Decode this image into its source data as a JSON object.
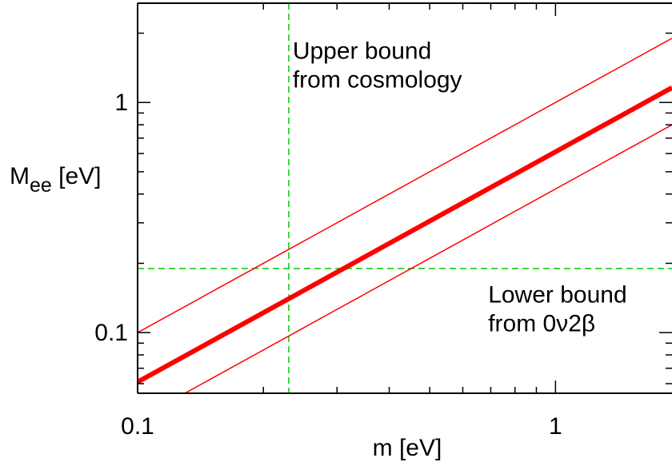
{
  "chart_data": {
    "type": "line",
    "title": "",
    "xlabel": "m [eV]",
    "ylabel_main": "M",
    "ylabel_sub": "ee",
    "ylabel_unit": " [eV]",
    "x_scale": "log",
    "y_scale": "log",
    "xlim": [
      0.1,
      1.9
    ],
    "ylim": [
      0.0545,
      2.7
    ],
    "x_ticks": [
      {
        "value": 0.1,
        "label": "0.1"
      },
      {
        "value": 1,
        "label": "1"
      }
    ],
    "y_ticks": [
      {
        "value": 0.1,
        "label": "0.1"
      },
      {
        "value": 1,
        "label": "1"
      }
    ],
    "grid": false,
    "series": [
      {
        "role": "upper",
        "x": [
          0.1,
          1.9
        ],
        "y": [
          0.1,
          1.9
        ],
        "color": "#ff0000",
        "weight": "thin"
      },
      {
        "role": "central",
        "x": [
          0.1,
          1.9
        ],
        "y": [
          0.061,
          1.16
        ],
        "color": "#ff0000",
        "weight": "thick"
      },
      {
        "role": "lower",
        "x": [
          0.1,
          1.9
        ],
        "y": [
          0.042,
          0.8
        ],
        "color": "#ff0000",
        "weight": "thin"
      }
    ],
    "reference_lines": [
      {
        "orientation": "vertical",
        "value": 0.23,
        "color": "#00cc00",
        "style": "dashed"
      },
      {
        "orientation": "horizontal",
        "value": 0.19,
        "color": "#00cc00",
        "style": "dashed"
      }
    ],
    "annotations": [
      {
        "lines": [
          "Upper bound",
          "from cosmology"
        ],
        "x": 0.235,
        "y": 1.55
      },
      {
        "lines": [
          "Lower bound",
          "from 0ν2β"
        ],
        "x": 0.69,
        "y": 0.135
      }
    ]
  }
}
